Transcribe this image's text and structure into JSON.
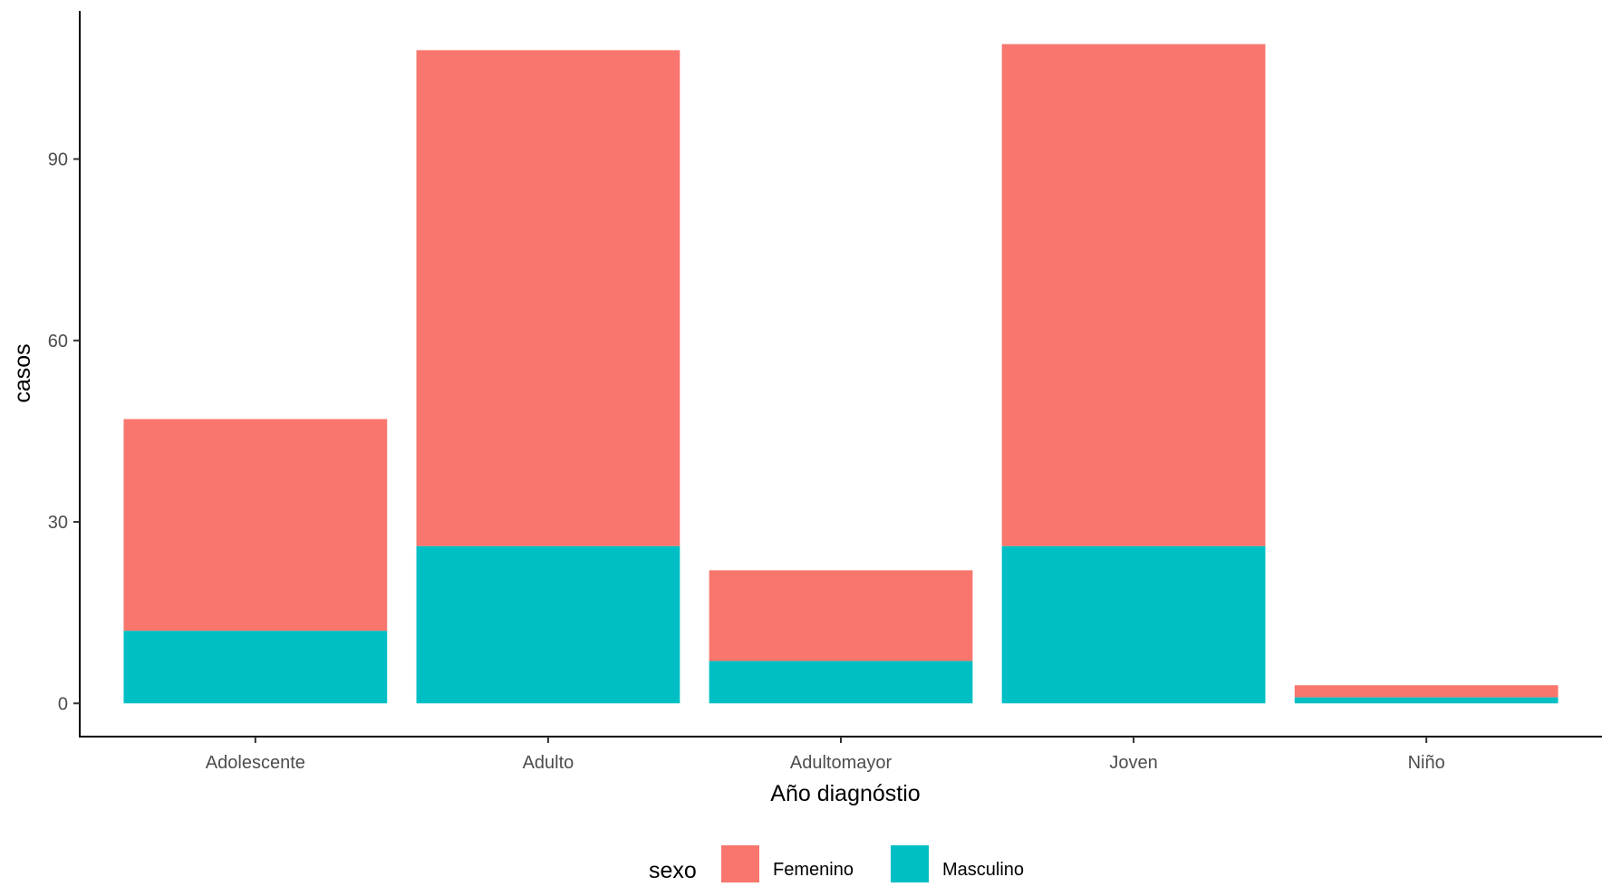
{
  "chart_data": {
    "type": "bar",
    "stacked": true,
    "title": "",
    "xlabel": "Año diagnóstio",
    "ylabel": "casos",
    "categories": [
      "Adolescente",
      "Adulto",
      "Adultomayor",
      "Joven",
      "Niño"
    ],
    "series": [
      {
        "name": "Femenino",
        "color": "#F8766D",
        "values": [
          35,
          82,
          15,
          83,
          2
        ]
      },
      {
        "name": "Masculino",
        "color": "#00BFC4",
        "values": [
          12,
          26,
          7,
          26,
          1
        ]
      }
    ],
    "ylim": [
      -5.5,
      114.5
    ],
    "yticks": [
      0,
      30,
      60,
      90
    ],
    "grid": false,
    "legend": {
      "title": "sexo",
      "position": "bottom",
      "entries": [
        "Femenino",
        "Masculino"
      ]
    }
  }
}
